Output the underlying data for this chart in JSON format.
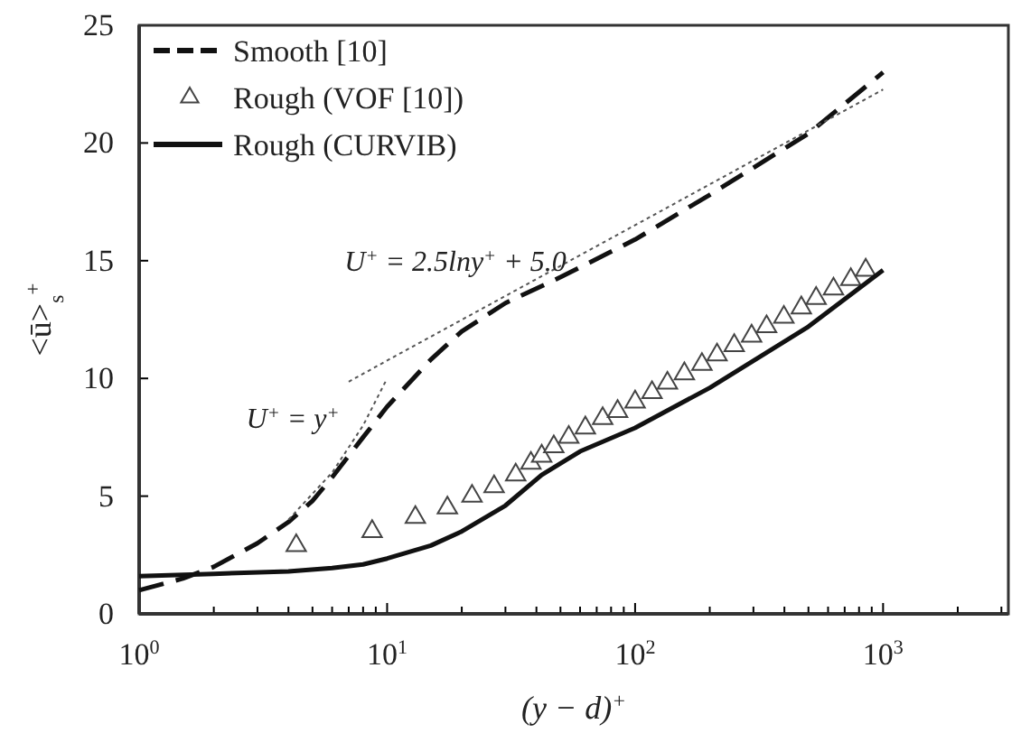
{
  "chart_data": {
    "type": "line",
    "xlabel": "(y − d)$^{+}$",
    "ylabel": "<ū>$_{s}$$^{+}$",
    "log": "x",
    "grid": false,
    "legend": "top left",
    "xlim": [
      1,
      3200
    ],
    "ylim": [
      0,
      25
    ],
    "xticks": [
      {
        "value": 1,
        "label": "10$^{0}$"
      },
      {
        "value": 2,
        "label": null
      },
      {
        "value": 3,
        "label": null
      },
      {
        "value": 4,
        "label": null
      },
      {
        "value": 5,
        "label": null
      },
      {
        "value": 6,
        "label": null
      },
      {
        "value": 7,
        "label": null
      },
      {
        "value": 8,
        "label": null
      },
      {
        "value": 9,
        "label": null
      },
      {
        "value": 10,
        "label": "10$^{1}$"
      },
      {
        "value": 20,
        "label": null
      },
      {
        "value": 30,
        "label": null
      },
      {
        "value": 40,
        "label": null
      },
      {
        "value": 50,
        "label": null
      },
      {
        "value": 60,
        "label": null
      },
      {
        "value": 70,
        "label": null
      },
      {
        "value": 80,
        "label": null
      },
      {
        "value": 90,
        "label": null
      },
      {
        "value": 100,
        "label": "10$^{2}$"
      },
      {
        "value": 200,
        "label": null
      },
      {
        "value": 300,
        "label": null
      },
      {
        "value": 400,
        "label": null
      },
      {
        "value": 500,
        "label": null
      },
      {
        "value": 600,
        "label": null
      },
      {
        "value": 700,
        "label": null
      },
      {
        "value": 800,
        "label": null
      },
      {
        "value": 900,
        "label": null
      },
      {
        "value": 1000,
        "label": "10$^{3}$"
      },
      {
        "value": 2000,
        "label": null
      },
      {
        "value": 3000,
        "label": null
      }
    ],
    "yticks": [
      0,
      5,
      10,
      15,
      20,
      25
    ],
    "annotations": [
      "U$^{+}$ = 2.5lny$^{+}$ + 5.0",
      "U$^{+}$ = y$^{+}$"
    ],
    "series": [
      {
        "name": "Smooth [10]",
        "line_style": "dashed",
        "color": "#111111",
        "x": [
          1,
          1.5,
          2,
          3,
          4,
          5,
          6,
          8,
          10,
          15,
          20,
          30,
          50,
          100,
          200,
          500,
          1000
        ],
        "values": [
          1,
          1.5,
          2,
          3,
          3.9,
          4.8,
          5.8,
          7.5,
          8.8,
          10.8,
          12,
          13.2,
          14.3,
          15.9,
          17.8,
          20.4,
          23
        ]
      },
      {
        "name": "Rough (VOF [10])",
        "type": "scatter",
        "marker": "triangle",
        "color": "#444444",
        "x": [
          4.3,
          8.7,
          13,
          17.5,
          22,
          27,
          33,
          38,
          42,
          47,
          54,
          63,
          74,
          85,
          100,
          117,
          135,
          158,
          186,
          214,
          251,
          295,
          339,
          398,
          468,
          537,
          631,
          741,
          851
        ],
        "values": [
          2.9,
          3.5,
          4.1,
          4.5,
          5.0,
          5.4,
          5.9,
          6.4,
          6.7,
          7.1,
          7.5,
          7.9,
          8.3,
          8.6,
          9.0,
          9.4,
          9.8,
          10.2,
          10.6,
          11.0,
          11.4,
          11.8,
          12.2,
          12.6,
          13.0,
          13.4,
          13.8,
          14.2,
          14.6
        ]
      },
      {
        "name": "Rough (CURVIB)",
        "line_style": "solid",
        "color": "#111111",
        "x": [
          1,
          2,
          4,
          6,
          8,
          10,
          15,
          20,
          30,
          42,
          60,
          100,
          200,
          500,
          1000
        ],
        "values": [
          1.6,
          1.7,
          1.8,
          1.95,
          2.1,
          2.35,
          2.9,
          3.5,
          4.6,
          5.9,
          6.9,
          7.9,
          9.6,
          12.2,
          14.6
        ]
      },
      {
        "line_style": "dotted",
        "color": "#555555",
        "x": [
          7,
          10,
          100,
          1000
        ],
        "values": [
          9.86,
          10.76,
          16.51,
          22.27
        ]
      },
      {
        "line_style": "dotted",
        "color": "#555555",
        "x": [
          4,
          6,
          8,
          10
        ],
        "values": [
          4,
          6,
          8,
          10
        ]
      }
    ]
  }
}
